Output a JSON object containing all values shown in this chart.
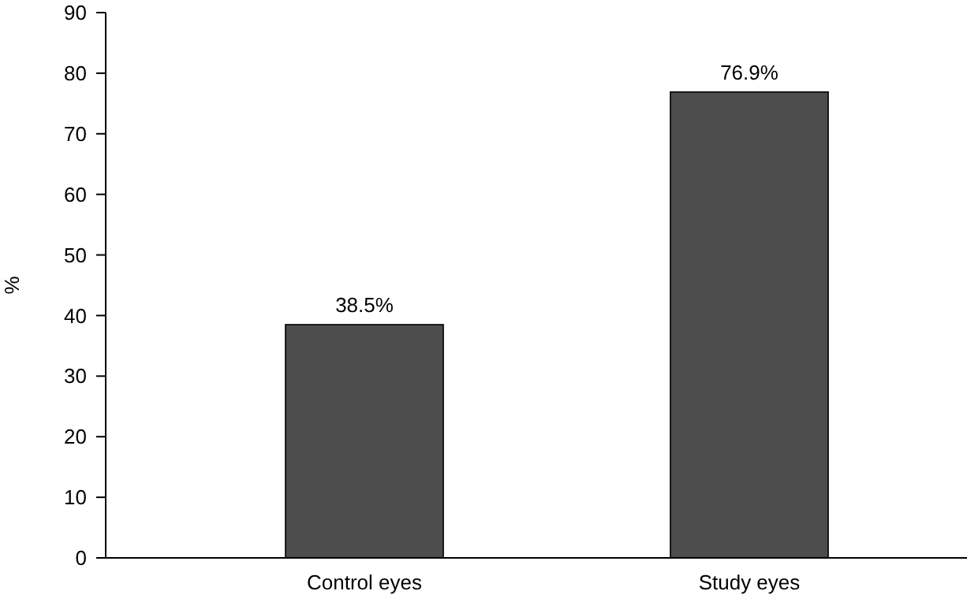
{
  "chart_data": {
    "type": "bar",
    "ylabel": "%",
    "categories": [
      "Control eyes",
      "Study eyes"
    ],
    "values": [
      38.5,
      76.9
    ],
    "value_labels": [
      "38.5%",
      "76.9%"
    ],
    "color": "#4d4d4d",
    "ylim": [
      0,
      90
    ],
    "yticks": [
      0,
      10,
      20,
      30,
      40,
      50,
      60,
      70,
      80,
      90
    ],
    "grid": false
  }
}
